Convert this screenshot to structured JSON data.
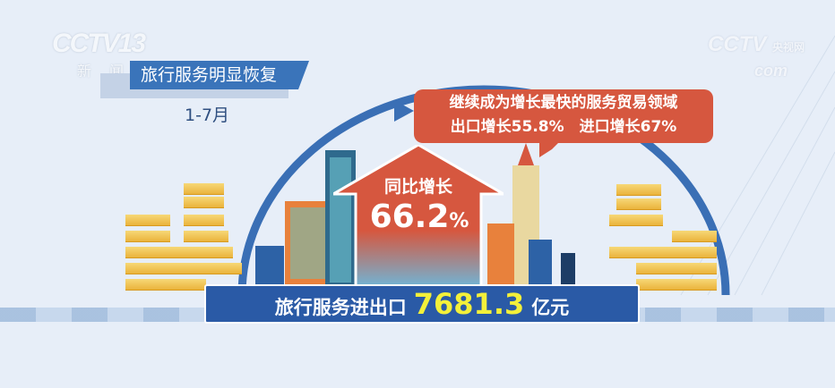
{
  "channel_logo": {
    "brand": "CCTV",
    "number": "13",
    "subtitle": "新闻"
  },
  "watermark": {
    "brand": "CCTV",
    "site": "央视网",
    "domain": "com"
  },
  "headline": "旅行服务明显恢复",
  "period": "1-7月",
  "callout": {
    "line1": "继续成为增长最快的服务贸易领域",
    "line2": "出口增长55.8%　进口增长67%"
  },
  "growth": {
    "label": "同比增长",
    "value": "66.2",
    "unit": "%"
  },
  "total": {
    "label": "旅行服务进出口",
    "value": "7681.3",
    "unit": "亿元"
  },
  "colors": {
    "headline_bg": "#3a74ba",
    "callout_bg": "#d6573f",
    "bar_bg": "#2a5aa6",
    "highlight": "#f3f03a"
  }
}
